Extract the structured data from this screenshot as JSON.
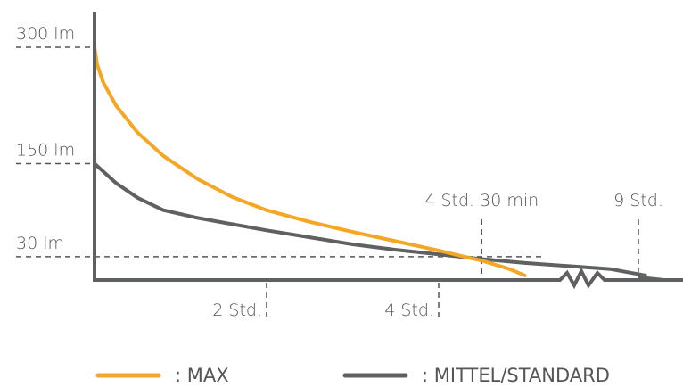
{
  "chart_data": {
    "type": "line",
    "title": "",
    "xlabel": "",
    "ylabel": "",
    "x_unit": "hours",
    "y_unit": "lm",
    "xlim": [
      0,
      10.5
    ],
    "ylim": [
      0,
      300
    ],
    "y_ticks": [
      {
        "value": 300,
        "label": "300 lm"
      },
      {
        "value": 150,
        "label": "150 lm"
      },
      {
        "value": 30,
        "label": "30 lm"
      }
    ],
    "x_ticks": [
      {
        "value": 2,
        "label": "2 Std."
      },
      {
        "value": 4,
        "label": "4 Std."
      }
    ],
    "markers": [
      {
        "value": 4.5,
        "label": "4 Std. 30 min"
      },
      {
        "value": 9,
        "label": "9 Std."
      }
    ],
    "axis_break_after": 8.1,
    "series": [
      {
        "name": "MAX",
        "color": "#f5a623",
        "x": [
          0,
          0.03,
          0.1,
          0.25,
          0.5,
          0.8,
          1.2,
          1.6,
          2.0,
          2.5,
          3.0,
          3.5,
          4.0,
          4.3,
          4.5,
          4.8,
          5.0
        ],
        "y": [
          300,
          278,
          255,
          225,
          190,
          160,
          130,
          107,
          90,
          75,
          62,
          50,
          38,
          30,
          25,
          15,
          6
        ]
      },
      {
        "name": "MITTEL/STANDARD",
        "color": "#5f6062",
        "x": [
          0,
          0.1,
          0.25,
          0.5,
          0.8,
          1.2,
          1.6,
          2.0,
          2.5,
          3.0,
          3.5,
          4.0,
          4.5,
          5.0,
          5.5,
          6.0,
          6.4
        ],
        "y": [
          150,
          140,
          125,
          106,
          90,
          80,
          72,
          64,
          55,
          46,
          39,
          33,
          27,
          22,
          18,
          14,
          6
        ]
      }
    ]
  },
  "legend": {
    "max_label": ": MAX",
    "std_label": ": MITTEL/STANDARD"
  }
}
